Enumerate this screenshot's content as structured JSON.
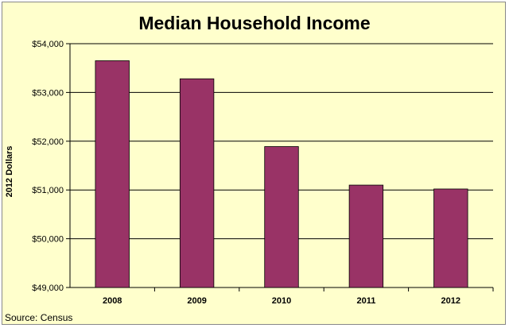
{
  "chart_data": {
    "type": "bar",
    "title": "Median Household Income",
    "ylabel": "2012 Dollars",
    "xlabel": "",
    "categories": [
      "2008",
      "2009",
      "2010",
      "2011",
      "2012"
    ],
    "values": [
      53650,
      53280,
      51890,
      51100,
      51020
    ],
    "ylim": [
      49000,
      54000
    ],
    "y_ticks": [
      49000,
      50000,
      51000,
      52000,
      53000,
      54000
    ],
    "y_tick_labels": [
      "$49,000",
      "$50,000",
      "$51,000",
      "$52,000",
      "$53,000",
      "$54,000"
    ],
    "grid": true,
    "legend": "none",
    "bar_color": "#993366",
    "background_color": "#ffffcc"
  },
  "source": "Source: Census"
}
